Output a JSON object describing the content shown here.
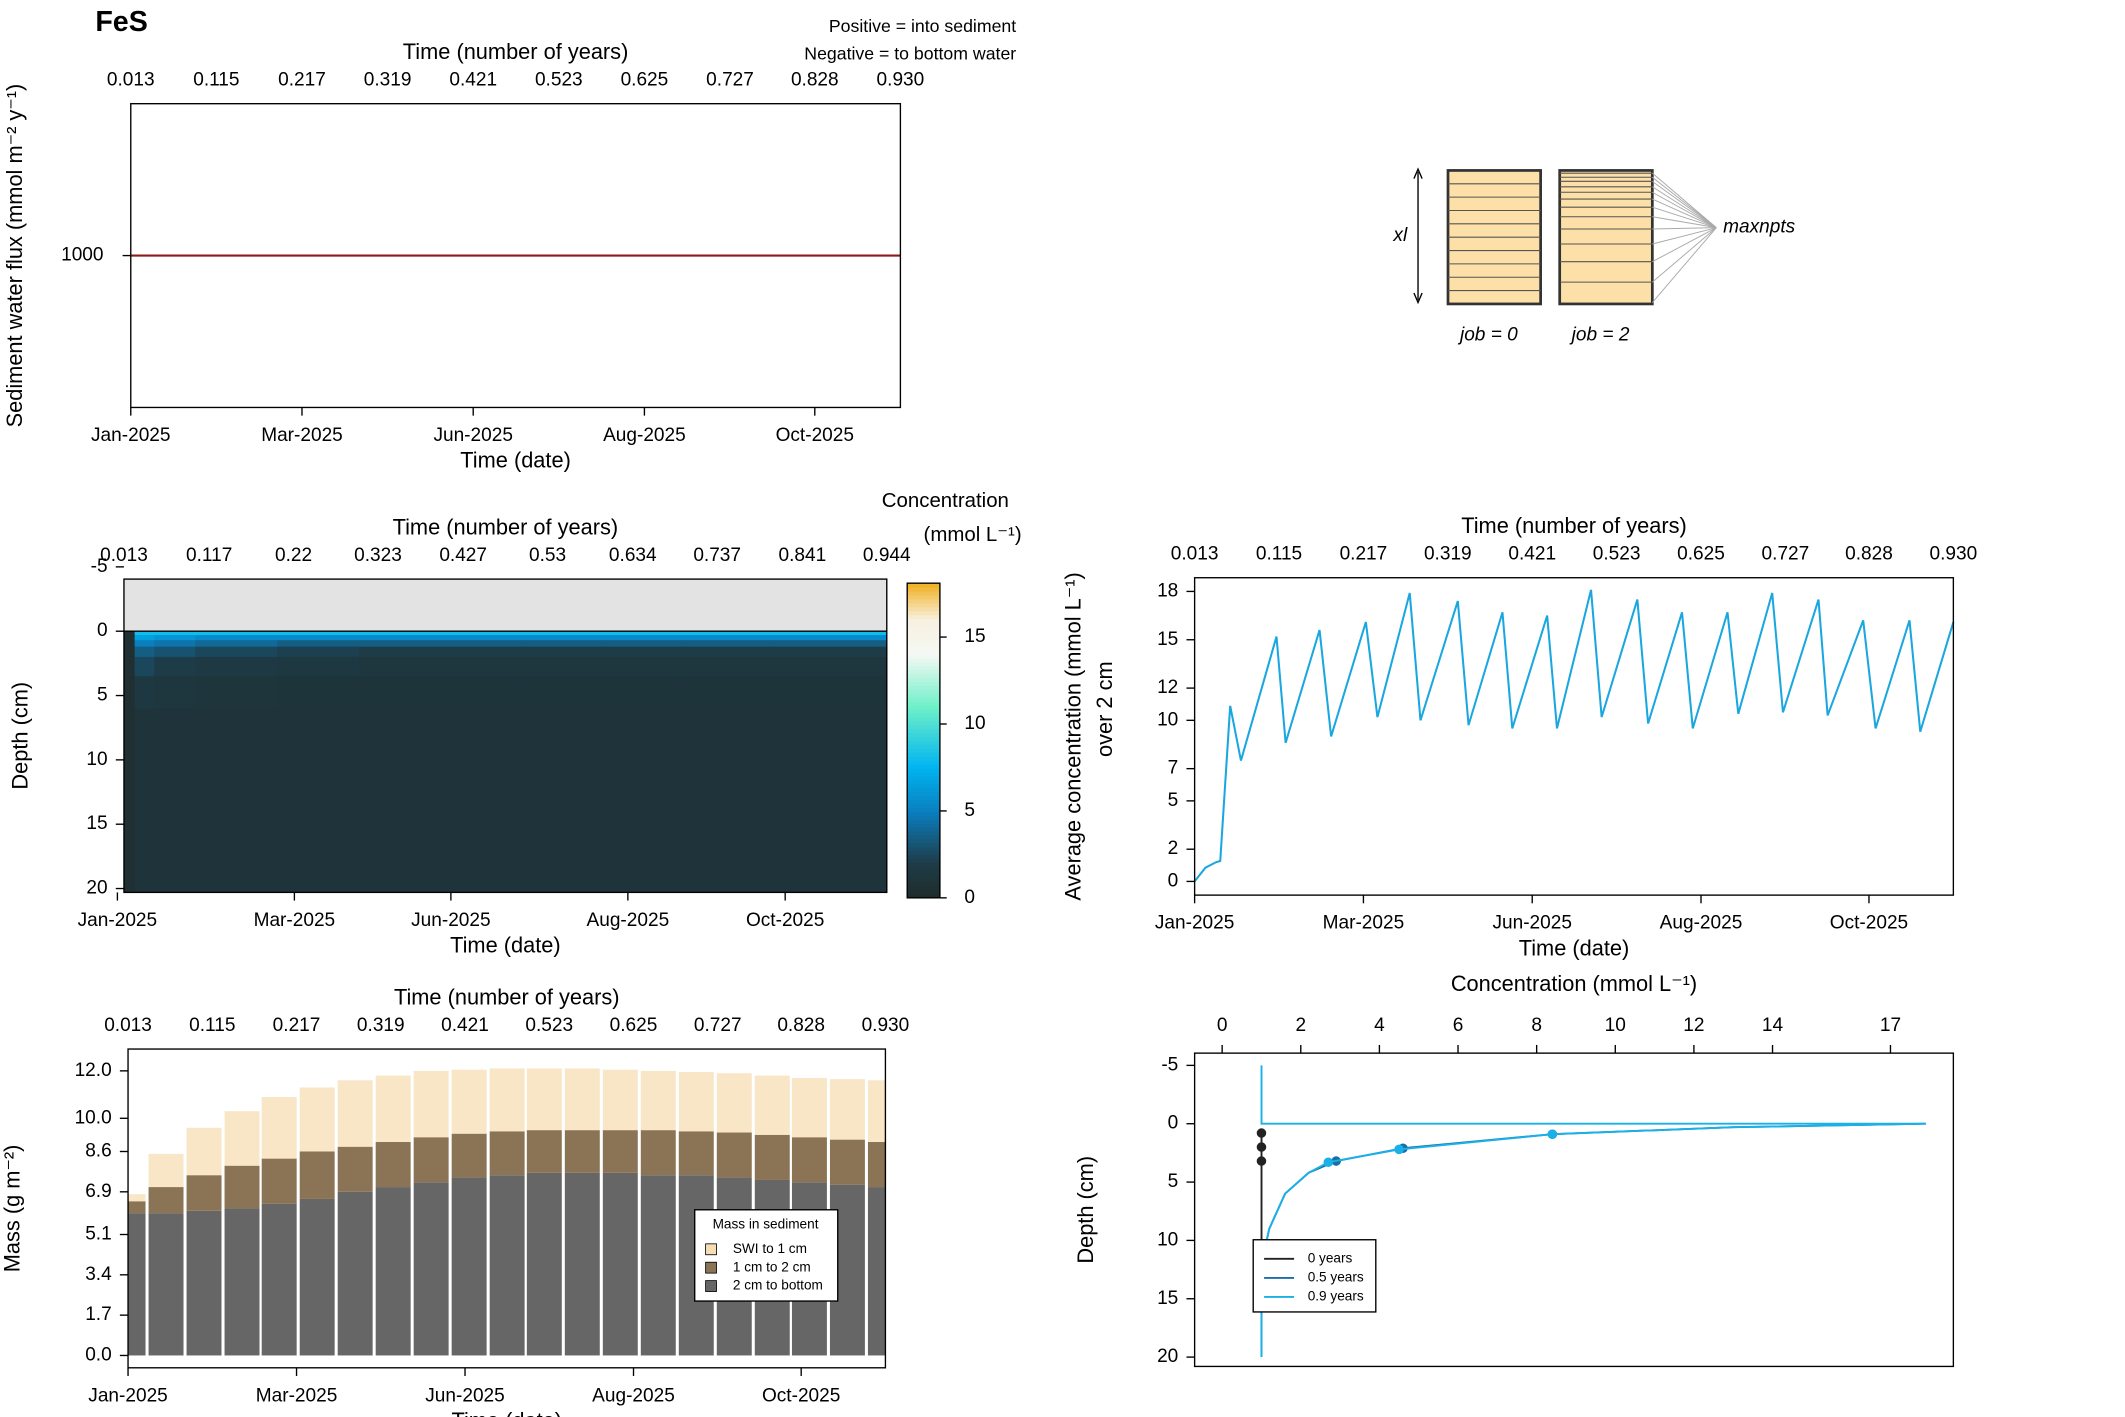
{
  "chart_data": [
    {
      "type": "line",
      "title": "FeS",
      "annotations": [
        {
          "text": "Positive = into sediment",
          "color": "#8b1a1a"
        },
        {
          "text": "Negative = to bottom water",
          "color": "#1a1a8b"
        }
      ],
      "x2label": "Time (number of years)",
      "xlabel": "Time (date)",
      "ylabel": "Sediment water flux (mmol m⁻² y⁻¹)",
      "x": [
        0.013,
        0.93
      ],
      "series": [
        {
          "color": "#8b1a1a",
          "values": [
            1000,
            1000
          ]
        }
      ],
      "xlim": [
        0.013,
        0.93
      ],
      "ylim": [
        0,
        2000
      ],
      "x2ticks": [
        0.013,
        0.115,
        0.217,
        0.319,
        0.421,
        0.523,
        0.625,
        0.727,
        0.828,
        {
          "value": 0.93,
          "label": "0.930"
        }
      ],
      "xticks": [
        {
          "value": 0.013,
          "label": "Jan-2025"
        },
        {
          "value": 0.217,
          "label": "Mar-2025"
        },
        {
          "value": 0.421,
          "label": "Jun-2025"
        },
        {
          "value": 0.625,
          "label": "Aug-2025"
        },
        {
          "value": 0.828,
          "label": "Oct-2025"
        }
      ],
      "yticks": [
        1000
      ]
    },
    {
      "type": "heatmap",
      "x2label": "Time (number of years)",
      "xlabel": "Time (date)",
      "ylabel": "Depth (cm)",
      "colorbar_title": "Concentration",
      "colorbar_unit": "(mmol L⁻¹)",
      "x": [
        0.013,
        0.026,
        0.05,
        0.1,
        0.2,
        0.3,
        0.4,
        0.5,
        0.6,
        0.7,
        0.8,
        0.944
      ],
      "y": [
        0,
        0.3,
        0.7,
        1.2,
        2,
        3.5,
        6,
        20.3
      ],
      "z": [
        [
          0.5,
          8,
          8,
          8,
          8,
          8,
          8,
          8,
          8,
          8,
          8
        ],
        [
          0.5,
          6.5,
          6,
          5.5,
          5.5,
          5.5,
          5.5,
          5.5,
          5.5,
          5.5,
          5.5
        ],
        [
          0.5,
          5,
          4.5,
          4,
          3.5,
          3.5,
          3.5,
          3.5,
          3.5,
          3.5,
          3.5
        ],
        [
          0.5,
          3.5,
          3,
          2.5,
          2.2,
          2,
          2,
          2,
          2,
          2,
          2
        ],
        [
          0.5,
          2.5,
          2,
          1.7,
          1.5,
          1.4,
          1.3,
          1.3,
          1.3,
          1.3,
          1.3
        ],
        [
          0.5,
          1.5,
          1.3,
          1.2,
          1.1,
          1.1,
          1.1,
          1.1,
          1.1,
          1.1,
          1.1
        ],
        [
          0.5,
          1,
          1,
          1,
          1,
          1,
          1,
          1,
          1,
          1,
          1
        ]
      ],
      "xlim": [
        0.013,
        0.944
      ],
      "ylim": [
        -4.05,
        20.3
      ],
      "y_reversed": true,
      "background": "#e3e3e3",
      "x2ticks": [
        0.013,
        0.117,
        0.22,
        0.323,
        0.427,
        0.53,
        0.634,
        0.737,
        0.841,
        0.944
      ],
      "xticks": [
        {
          "value": 0.005,
          "label": "Jan-2025"
        },
        {
          "value": 0.221,
          "label": "Mar-2025"
        },
        {
          "value": 0.412,
          "label": "Jun-2025"
        },
        {
          "value": 0.628,
          "label": "Aug-2025"
        },
        {
          "value": 0.82,
          "label": "Oct-2025"
        }
      ],
      "yticks": [
        -5,
        0,
        5,
        10,
        15,
        20
      ],
      "zlim": [
        0,
        18.1
      ],
      "zticks": [
        0,
        5,
        10,
        15
      ],
      "colorscale": [
        {
          "value": 0,
          "color": "#1f2b2b"
        },
        {
          "value": 2,
          "color": "#1e3c48"
        },
        {
          "value": 5,
          "color": "#0a7fc0"
        },
        {
          "value": 7.5,
          "color": "#00b4f0"
        },
        {
          "value": 11,
          "color": "#6ef0c8"
        },
        {
          "value": 14,
          "color": "#f4f8f4"
        },
        {
          "value": 16,
          "color": "#f8f0e0"
        },
        {
          "value": 18.1,
          "color": "#f0b020"
        }
      ]
    },
    {
      "type": "line",
      "x2label": "Time (number of years)",
      "xlabel": "Time (date)",
      "ylabel": "Average concentration (mmol L⁻¹)",
      "ylabel2": "over 2 cm",
      "x": [
        0.013,
        0.026,
        0.039,
        0.044,
        0.056,
        0.069,
        0.112,
        0.123,
        0.164,
        0.178,
        0.22,
        0.234,
        0.273,
        0.286,
        0.331,
        0.344,
        0.385,
        0.397,
        0.439,
        0.451,
        0.492,
        0.505,
        0.548,
        0.561,
        0.602,
        0.615,
        0.657,
        0.67,
        0.711,
        0.724,
        0.767,
        0.778,
        0.821,
        0.836,
        0.877,
        0.89,
        0.93
      ],
      "series": [
        {
          "color": "#1aa7e0",
          "values": [
            0,
            0.85,
            1.2,
            1.27,
            10.9,
            7.5,
            15.2,
            8.6,
            15.6,
            9.0,
            16.1,
            10.2,
            17.9,
            10.0,
            17.4,
            9.7,
            16.7,
            9.5,
            16.5,
            9.5,
            18.1,
            10.2,
            17.5,
            9.8,
            16.7,
            9.5,
            16.7,
            10.4,
            17.9,
            10.5,
            17.5,
            10.3,
            16.2,
            9.5,
            16.2,
            9.3,
            16.1
          ]
        }
      ],
      "xlim": [
        0.013,
        0.93
      ],
      "ylim": [
        -0.85,
        18.85
      ],
      "x2ticks": [
        0.013,
        0.115,
        0.217,
        0.319,
        0.421,
        0.523,
        0.625,
        0.727,
        0.828,
        {
          "value": 0.93,
          "label": "0.930"
        }
      ],
      "xticks": [
        {
          "value": 0.013,
          "label": "Jan-2025"
        },
        {
          "value": 0.217,
          "label": "Mar-2025"
        },
        {
          "value": 0.421,
          "label": "Jun-2025"
        },
        {
          "value": 0.625,
          "label": "Aug-2025"
        },
        {
          "value": 0.828,
          "label": "Oct-2025"
        }
      ],
      "yticks": [
        0,
        2,
        5,
        7,
        10,
        12,
        15,
        18
      ]
    },
    {
      "type": "stacked_bar",
      "x2label": "Time (number of years)",
      "xlabel": "Time (date)",
      "ylabel": "Mass (g m⁻²)",
      "legend_title": "Mass in sediment",
      "legend": "bottom-right",
      "x": [
        0.013,
        0.059,
        0.105,
        0.151,
        0.196,
        0.242,
        0.288,
        0.334,
        0.38,
        0.426,
        0.472,
        0.517,
        0.563,
        0.609,
        0.655,
        0.701,
        0.747,
        0.793,
        0.838,
        0.884,
        0.93
      ],
      "series": [
        {
          "name": "2 cm to bottom",
          "color": "#666666",
          "values": [
            6.0,
            6.0,
            6.1,
            6.2,
            6.4,
            6.6,
            6.9,
            7.1,
            7.3,
            7.5,
            7.6,
            7.7,
            7.7,
            7.7,
            7.6,
            7.6,
            7.5,
            7.4,
            7.3,
            7.2,
            7.1
          ]
        },
        {
          "name": "1 cm to 2 cm",
          "color": "#8b7355",
          "values": [
            0.5,
            1.1,
            1.5,
            1.8,
            1.9,
            2.0,
            1.9,
            1.9,
            1.9,
            1.85,
            1.85,
            1.8,
            1.8,
            1.8,
            1.9,
            1.85,
            1.9,
            1.9,
            1.9,
            1.9,
            1.9
          ]
        },
        {
          "name": "SWI to 1 cm",
          "color": "#f5deb3",
          "values": [
            0.3,
            1.4,
            2.0,
            2.3,
            2.6,
            2.7,
            2.8,
            2.8,
            2.8,
            2.7,
            2.65,
            2.6,
            2.6,
            2.55,
            2.5,
            2.5,
            2.5,
            2.5,
            2.5,
            2.55,
            2.6
          ]
        }
      ],
      "xlim": [
        0.013,
        0.93
      ],
      "ylim": [
        -0.52,
        12.92
      ],
      "x2ticks": [
        0.013,
        0.115,
        0.217,
        0.319,
        0.421,
        0.523,
        0.625,
        0.727,
        0.828,
        {
          "value": 0.93,
          "label": "0.930"
        }
      ],
      "xticks": [
        {
          "value": 0.013,
          "label": "Jan-2025"
        },
        {
          "value": 0.217,
          "label": "Mar-2025"
        },
        {
          "value": 0.421,
          "label": "Jun-2025"
        },
        {
          "value": 0.625,
          "label": "Aug-2025"
        },
        {
          "value": 0.828,
          "label": "Oct-2025"
        }
      ],
      "yticks": [
        {
          "value": 0,
          "label": "0.0"
        },
        1.7,
        3.4,
        5.1,
        6.9,
        8.6,
        {
          "value": 10,
          "label": "10.0"
        },
        {
          "value": 12,
          "label": "12.0"
        }
      ]
    },
    {
      "type": "profile",
      "xlabel": "Concentration (mmol L⁻¹)",
      "ylabel": "Depth (cm)",
      "legend": "bottom-left",
      "xlim": [
        -0.7,
        18.6
      ],
      "ylim": [
        -6.05,
        20.8
      ],
      "y_reversed": true,
      "xticks": [
        0,
        2,
        4,
        6,
        8,
        10,
        12,
        14,
        17
      ],
      "yticks": [
        -5,
        0,
        5,
        10,
        15,
        20
      ],
      "series": [
        {
          "name": "0 years",
          "color": "#222222",
          "x": [
            1.0,
            1.0,
            1.0,
            1.0
          ],
          "values": [
            0.8,
            2.0,
            3.2,
            20
          ]
        },
        {
          "name": "0.5 years",
          "color": "#1a6fa8",
          "x": [
            17.9,
            13,
            8.4,
            4.6,
            2.9,
            2.2,
            1.6,
            1.2,
            1.0,
            1.0
          ],
          "values": [
            0,
            0.3,
            0.9,
            2.1,
            3.2,
            4.2,
            6,
            9,
            12,
            20
          ]
        },
        {
          "name": "0.9 years",
          "color": "#1ab0e8",
          "x": [
            1.0,
            1.0,
            17.9,
            13,
            8.4,
            4.5,
            2.7,
            2.2,
            1.6,
            1.2,
            1.0,
            1.0
          ],
          "values": [
            -5,
            0,
            0,
            0.3,
            0.9,
            2.2,
            3.3,
            4.2,
            6,
            9,
            12,
            20
          ]
        }
      ]
    }
  ],
  "diagram": {
    "side_label": "xl",
    "left_label": "job = 0",
    "right_label": "job = 2",
    "points_label": "maxnpts"
  }
}
